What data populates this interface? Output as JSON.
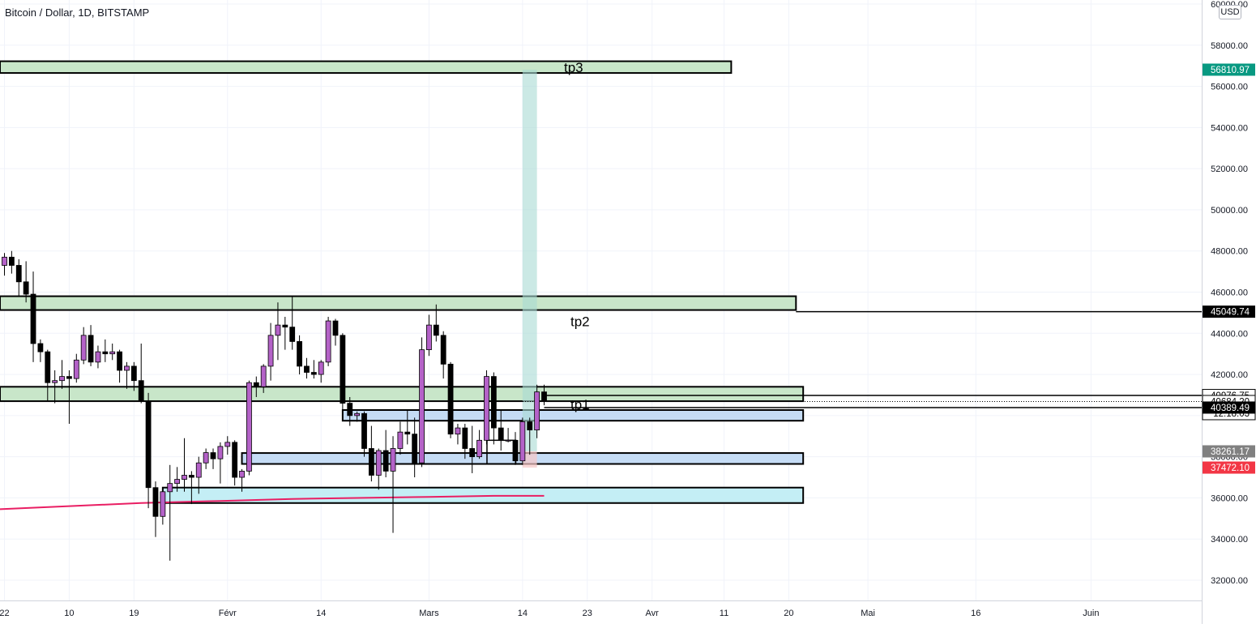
{
  "symbol": {
    "title": "Bitcoin / Dollar, 1D, BITSTAMP",
    "currency": "USD"
  },
  "colors": {
    "up_candle": "#b462c8",
    "down_candle": "#000000",
    "zone_green": "#c8e6c9",
    "zone_blue": "#c5dcf5",
    "zone_cyan": "#c4eef5",
    "target_fill": "#a8dbd3",
    "ma_line": "#e91e63",
    "grid": "#f0f3fa",
    "badge_green": "#089981",
    "badge_red": "#f23645",
    "badge_gray": "#808080"
  },
  "chart_data": {
    "type": "candlestick",
    "title": "Bitcoin / Dollar, 1D, BITSTAMP",
    "y_axis": {
      "min": 31000,
      "max": 60100,
      "ticks": [
        32000,
        34000,
        36000,
        38000,
        40000,
        42000,
        44000,
        46000,
        48000,
        50000,
        52000,
        54000,
        56000,
        58000,
        60000
      ],
      "tick_labels": [
        "32000.00",
        "34000.00",
        "36000.00",
        "38000.00",
        "40000.00",
        "42000.00",
        "44000.00",
        "46000.00",
        "48000.00",
        "50000.00",
        "52000.00",
        "54000.00",
        "56000.00",
        "58000.00",
        "60000.00"
      ]
    },
    "x_axis_labels": [
      {
        "date": "2022-01-01",
        "label": "22"
      },
      {
        "date": "2022-01-10",
        "label": "10"
      },
      {
        "date": "2022-01-19",
        "label": "19"
      },
      {
        "date": "2022-02-01",
        "label": "Févr"
      },
      {
        "date": "2022-02-14",
        "label": "14"
      },
      {
        "date": "2022-03-01",
        "label": "Mars"
      },
      {
        "date": "2022-03-14",
        "label": "14"
      },
      {
        "date": "2022-03-23",
        "label": "23"
      },
      {
        "date": "2022-04-01",
        "label": "Avr"
      },
      {
        "date": "2022-04-11",
        "label": "11"
      },
      {
        "date": "2022-04-20",
        "label": "20"
      },
      {
        "date": "2022-05-01",
        "label": "Mai"
      },
      {
        "date": "2022-05-16",
        "label": "16"
      },
      {
        "date": "2022-06-01",
        "label": "Juin"
      }
    ],
    "ohlc": [
      [
        "2022-01-01",
        47300,
        47900,
        46800,
        47700
      ],
      [
        "2022-01-02",
        47700,
        48000,
        46900,
        47300
      ],
      [
        "2022-01-03",
        47300,
        47600,
        45800,
        46500
      ],
      [
        "2022-01-04",
        46500,
        47500,
        45500,
        45900
      ],
      [
        "2022-01-05",
        45900,
        47000,
        42600,
        43500
      ],
      [
        "2022-01-06",
        43500,
        43700,
        42600,
        43100
      ],
      [
        "2022-01-07",
        43100,
        43200,
        40700,
        41600
      ],
      [
        "2022-01-08",
        41600,
        42200,
        40600,
        41700
      ],
      [
        "2022-01-09",
        41700,
        42700,
        41300,
        41900
      ],
      [
        "2022-01-10",
        41900,
        42200,
        39600,
        41800
      ],
      [
        "2022-01-11",
        41800,
        43000,
        41600,
        42700
      ],
      [
        "2022-01-12",
        42700,
        44300,
        42500,
        43900
      ],
      [
        "2022-01-13",
        43900,
        44400,
        42400,
        42600
      ],
      [
        "2022-01-14",
        42600,
        43400,
        42300,
        43100
      ],
      [
        "2022-01-15",
        43100,
        43700,
        42600,
        43000
      ],
      [
        "2022-01-16",
        43000,
        43500,
        42700,
        43100
      ],
      [
        "2022-01-17",
        43100,
        43200,
        41600,
        42200
      ],
      [
        "2022-01-18",
        42200,
        42600,
        41300,
        42400
      ],
      [
        "2022-01-19",
        42400,
        42600,
        41200,
        41700
      ],
      [
        "2022-01-20",
        41700,
        43500,
        40600,
        40700
      ],
      [
        "2022-01-21",
        40700,
        41100,
        35500,
        36500
      ],
      [
        "2022-01-22",
        36500,
        36800,
        34100,
        35100
      ],
      [
        "2022-01-23",
        35100,
        36500,
        34700,
        36300
      ],
      [
        "2022-01-24",
        36300,
        37600,
        32950,
        36700
      ],
      [
        "2022-01-25",
        36700,
        37500,
        36300,
        36900
      ],
      [
        "2022-01-26",
        36900,
        38900,
        36300,
        37100
      ],
      [
        "2022-01-27",
        37100,
        37300,
        35700,
        37000
      ],
      [
        "2022-01-28",
        37000,
        38000,
        36200,
        37700
      ],
      [
        "2022-01-29",
        37700,
        38400,
        37400,
        38200
      ],
      [
        "2022-01-30",
        38200,
        38400,
        37400,
        37900
      ],
      [
        "2022-01-31",
        37900,
        38700,
        36700,
        38500
      ],
      [
        "2022-02-01",
        38500,
        39000,
        38100,
        38700
      ],
      [
        "2022-02-02",
        38700,
        38800,
        36600,
        37000
      ],
      [
        "2022-02-03",
        37000,
        37400,
        36300,
        37300
      ],
      [
        "2022-02-04",
        37300,
        41700,
        37100,
        41600
      ],
      [
        "2022-02-05",
        41600,
        41900,
        40900,
        41400
      ],
      [
        "2022-02-06",
        41400,
        42500,
        41100,
        42400
      ],
      [
        "2022-02-07",
        42400,
        44500,
        41700,
        43900
      ],
      [
        "2022-02-08",
        43900,
        45500,
        42700,
        44400
      ],
      [
        "2022-02-09",
        44400,
        44800,
        43200,
        44300
      ],
      [
        "2022-02-10",
        44300,
        45800,
        43200,
        43600
      ],
      [
        "2022-02-11",
        43600,
        43900,
        42000,
        42400
      ],
      [
        "2022-02-12",
        42400,
        42800,
        41800,
        42100
      ],
      [
        "2022-02-13",
        42100,
        42700,
        41800,
        42000
      ],
      [
        "2022-02-14",
        42000,
        42700,
        41600,
        42600
      ],
      [
        "2022-02-15",
        42600,
        44800,
        42400,
        44600
      ],
      [
        "2022-02-16",
        44600,
        44700,
        43400,
        43900
      ],
      [
        "2022-02-17",
        43900,
        44000,
        40100,
        40600
      ],
      [
        "2022-02-18",
        40600,
        40900,
        39500,
        40000
      ],
      [
        "2022-02-19",
        40000,
        40200,
        39700,
        40100
      ],
      [
        "2022-02-20",
        40100,
        40200,
        38000,
        38400
      ],
      [
        "2022-02-21",
        38400,
        39500,
        36800,
        37100
      ],
      [
        "2022-02-22",
        37100,
        38400,
        36400,
        38300
      ],
      [
        "2022-02-23",
        38300,
        39300,
        37000,
        37300
      ],
      [
        "2022-02-24",
        37300,
        39000,
        34300,
        38400
      ],
      [
        "2022-02-25",
        38400,
        39700,
        38100,
        39200
      ],
      [
        "2022-02-26",
        39200,
        40300,
        38600,
        39100
      ],
      [
        "2022-02-27",
        39100,
        39900,
        37000,
        37700
      ],
      [
        "2022-02-28",
        37700,
        43800,
        37500,
        43200
      ],
      [
        "2022-03-01",
        43200,
        44900,
        42900,
        44400
      ],
      [
        "2022-03-02",
        44400,
        45400,
        43600,
        43900
      ],
      [
        "2022-03-03",
        43900,
        44100,
        41800,
        42500
      ],
      [
        "2022-03-04",
        42500,
        42600,
        38900,
        39100
      ],
      [
        "2022-03-05",
        39100,
        39600,
        38600,
        39400
      ],
      [
        "2022-03-06",
        39400,
        39600,
        37900,
        38400
      ],
      [
        "2022-03-07",
        38400,
        39500,
        37200,
        38000
      ],
      [
        "2022-03-08",
        38000,
        39300,
        37900,
        38800
      ],
      [
        "2022-03-09",
        38800,
        42200,
        38600,
        41900
      ],
      [
        "2022-03-10",
        41900,
        42100,
        38600,
        39400
      ],
      [
        "2022-03-11",
        39400,
        40300,
        38300,
        38800
      ],
      [
        "2022-03-12",
        38800,
        39400,
        38700,
        38800
      ],
      [
        "2022-03-13",
        38800,
        39200,
        37600,
        37800
      ],
      [
        "2022-03-14",
        37800,
        39900,
        37600,
        39700
      ],
      [
        "2022-03-15",
        39700,
        39900,
        38100,
        39300
      ],
      [
        "2022-03-16",
        39300,
        41500,
        38900,
        41150
      ],
      [
        "2022-03-17",
        41150,
        41500,
        40500,
        40690
      ]
    ],
    "moving_average": [
      [
        "2021-12-31",
        35450
      ],
      [
        "2022-01-10",
        35600
      ],
      [
        "2022-01-20",
        35750
      ],
      [
        "2022-01-31",
        35850
      ],
      [
        "2022-02-10",
        35950
      ],
      [
        "2022-02-20",
        36000
      ],
      [
        "2022-03-01",
        36050
      ],
      [
        "2022-03-10",
        36100
      ],
      [
        "2022-03-17",
        36100
      ]
    ],
    "zones": [
      {
        "name": "tp3-zone",
        "start": "2021-12-31",
        "end": "2022-04-12",
        "top": 57220,
        "bottom": 56650,
        "color": "green",
        "label": "tp3"
      },
      {
        "name": "tp2-zone",
        "start": "2021-12-31",
        "end": "2022-04-21",
        "top": 45800,
        "bottom": 45130,
        "color": "green",
        "label": "tp2"
      },
      {
        "name": "tp1-zone",
        "start": "2021-12-31",
        "end": "2022-04-22",
        "top": 41400,
        "bottom": 40700,
        "color": "green",
        "label": "tp1"
      },
      {
        "name": "blue-zone-upper",
        "start": "2022-02-17",
        "end": "2022-04-22",
        "top": 40270,
        "bottom": 39750,
        "color": "blue",
        "label": ""
      },
      {
        "name": "blue-zone-lower",
        "start": "2022-02-03",
        "end": "2022-04-22",
        "top": 38180,
        "bottom": 37650,
        "color": "blue",
        "label": ""
      },
      {
        "name": "cyan-zone",
        "start": "2022-01-23",
        "end": "2022-04-22",
        "top": 36500,
        "bottom": 35750,
        "color": "cyan",
        "label": ""
      }
    ],
    "long_position": {
      "start": "2022-03-14",
      "end": "2022-03-16",
      "entry": 38261.17,
      "target": 56810.97,
      "stop": 37472.1
    },
    "horizontal_lines": [
      {
        "name": "line-45049",
        "start": "2022-04-21",
        "price": 45049.74
      },
      {
        "name": "line-40976",
        "start": "2022-03-17",
        "price": 40976.75
      },
      {
        "name": "line-40389",
        "start": "2022-03-17",
        "price": 40389.49
      }
    ],
    "dotted_line_price": 40684.2,
    "price_badges": [
      {
        "name": "badge-56810",
        "price": 56810.97,
        "label": "56810.97",
        "style": "green"
      },
      {
        "name": "badge-45049",
        "price": 45049.74,
        "label": "45049.74",
        "style": "black"
      },
      {
        "name": "badge-40976",
        "price": 40976.75,
        "label": "40976.75",
        "style": "outline"
      },
      {
        "name": "badge-40684",
        "price": 40684.2,
        "label": "40684.20",
        "style": "outline-dark",
        "sublabel": "12:18:03"
      },
      {
        "name": "badge-40389",
        "price": 40389.49,
        "label": "40389.49",
        "style": "black"
      },
      {
        "name": "badge-38261",
        "price": 38261.17,
        "label": "38261.17",
        "style": "gray"
      },
      {
        "name": "badge-37472",
        "price": 37472.1,
        "label": "37472.10",
        "style": "red"
      }
    ]
  }
}
